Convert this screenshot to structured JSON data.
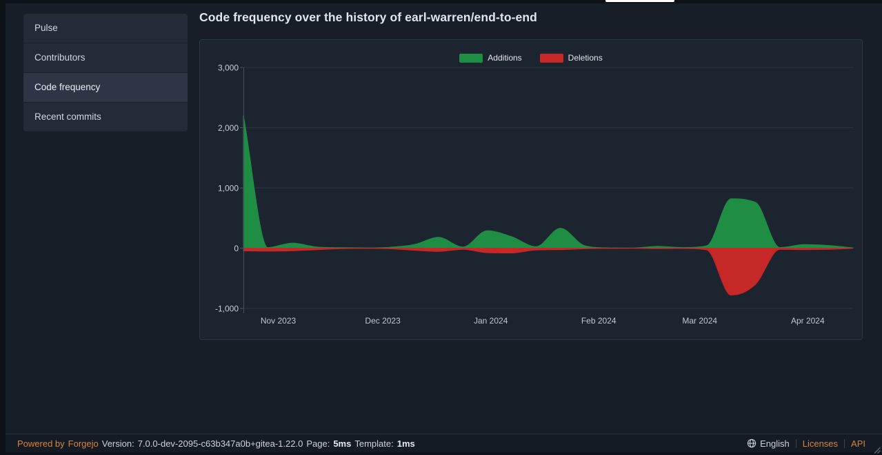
{
  "page": {
    "title": "Code frequency over the history of earl-warren/end-to-end"
  },
  "sidebar": {
    "items": [
      {
        "label": "Pulse",
        "active": false
      },
      {
        "label": "Contributors",
        "active": false
      },
      {
        "label": "Code frequency",
        "active": true
      },
      {
        "label": "Recent commits",
        "active": false
      }
    ]
  },
  "colors": {
    "additions_green": "#1f8e44",
    "deletions_red": "#c62727",
    "brand_orange": "#d8823c"
  },
  "chart_data": {
    "type": "area",
    "title": "Code frequency over the history of earl-warren/end-to-end",
    "x_unit": "week",
    "grid": true,
    "legend_position": "top-center",
    "ylim": [
      -1000,
      3000
    ],
    "x": [
      "2023-10-22",
      "2023-10-29",
      "2023-11-05",
      "2023-11-12",
      "2023-11-19",
      "2023-11-26",
      "2023-12-03",
      "2023-12-10",
      "2023-12-17",
      "2023-12-24",
      "2023-12-31",
      "2024-01-07",
      "2024-01-14",
      "2024-01-21",
      "2024-01-28",
      "2024-02-04",
      "2024-02-11",
      "2024-02-18",
      "2024-02-25",
      "2024-03-03",
      "2024-03-10",
      "2024-03-17",
      "2024-03-24",
      "2024-03-31",
      "2024-04-07",
      "2024-04-14"
    ],
    "series": [
      {
        "name": "Additions",
        "color": "#1f8e44",
        "values": [
          2200,
          10,
          85,
          20,
          8,
          5,
          15,
          60,
          180,
          20,
          290,
          190,
          25,
          330,
          40,
          5,
          3,
          30,
          10,
          40,
          820,
          760,
          10,
          60,
          45,
          5
        ]
      },
      {
        "name": "Deletions",
        "color": "#c62727",
        "values": [
          -45,
          -50,
          -45,
          -25,
          -8,
          -5,
          -10,
          -35,
          -55,
          -20,
          -75,
          -80,
          -30,
          -25,
          -10,
          -4,
          -3,
          -8,
          -6,
          -30,
          -780,
          -600,
          -20,
          -25,
          -20,
          -3
        ]
      }
    ],
    "yticks": [
      {
        "value": 3000,
        "label": "3,000"
      },
      {
        "value": 2000,
        "label": "2,000"
      },
      {
        "value": 1000,
        "label": "1,000"
      },
      {
        "value": 0,
        "label": "0"
      },
      {
        "value": -1000,
        "label": "-1,000"
      }
    ],
    "xticks": [
      {
        "label": "Nov 2023",
        "date": "2023-11-01"
      },
      {
        "label": "Dec 2023",
        "date": "2023-12-01"
      },
      {
        "label": "Jan 2024",
        "date": "2024-01-01"
      },
      {
        "label": "Feb 2024",
        "date": "2024-02-01"
      },
      {
        "label": "Mar 2024",
        "date": "2024-03-01"
      },
      {
        "label": "Apr 2024",
        "date": "2024-04-01"
      }
    ]
  },
  "footer": {
    "powered_prefix": "Powered by",
    "brand": "Forgejo",
    "version_label": "Version:",
    "version": "7.0.0-dev-2095-c63b347a0b+gitea-1.22.0",
    "page_label": "Page:",
    "page_time": "5ms",
    "template_label": "Template:",
    "template_time": "1ms",
    "language": "English",
    "licenses": "Licenses",
    "api": "API"
  }
}
